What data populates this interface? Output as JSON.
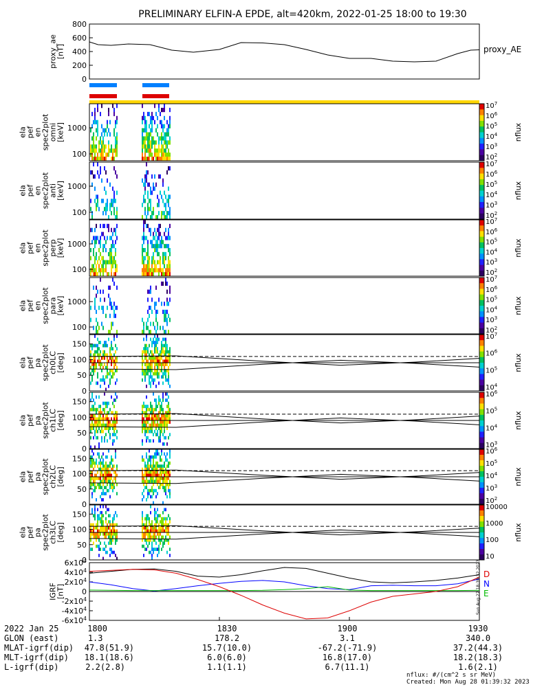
{
  "title": "PRELIMINARY ELFIN-A EPDE, alt=420km, 2022-01-25 18:00 to 19:30",
  "chart_data": [
    {
      "type": "line",
      "ylabel_lines": [
        "proxy_ae",
        "[nT]"
      ],
      "legend": "proxy_AE",
      "ylim": [
        0,
        800
      ],
      "yticks": [
        "0",
        "200",
        "400",
        "600",
        "800"
      ],
      "x_minutes": [
        0,
        2,
        5,
        9,
        14,
        19,
        24,
        30,
        35,
        40,
        45,
        50,
        55,
        60,
        65,
        70,
        75,
        80,
        85,
        88,
        90
      ],
      "values": [
        540,
        500,
        490,
        510,
        500,
        420,
        390,
        430,
        530,
        525,
        500,
        430,
        350,
        300,
        300,
        260,
        250,
        260,
        370,
        420,
        425
      ]
    },
    {
      "type": "heatmap",
      "ylabel_lines": [
        "ela",
        "pef",
        "en",
        "spec2plot",
        "omni",
        "[keV]"
      ],
      "yticks": [
        "100",
        "1000"
      ],
      "colorbar_label": "nflux",
      "colorbar_ticks": [
        "10^2",
        "10^3",
        "10^4",
        "10^5",
        "10^6",
        "10^7"
      ]
    },
    {
      "type": "heatmap",
      "ylabel_lines": [
        "ela",
        "pef",
        "en",
        "spec2plot",
        "anti",
        "[keV]"
      ],
      "yticks": [
        "100",
        "1000"
      ],
      "colorbar_label": "nflux",
      "colorbar_ticks": [
        "10^2",
        "10^3",
        "10^4",
        "10^5",
        "10^6",
        "10^7"
      ]
    },
    {
      "type": "heatmap",
      "ylabel_lines": [
        "ela",
        "pef",
        "en",
        "spec2plot",
        "perp",
        "[keV]"
      ],
      "yticks": [
        "100",
        "1000"
      ],
      "colorbar_label": "nflux",
      "colorbar_ticks": [
        "10^2",
        "10^3",
        "10^4",
        "10^5",
        "10^6",
        "10^7"
      ]
    },
    {
      "type": "heatmap",
      "ylabel_lines": [
        "ela",
        "pef",
        "en",
        "spec2plot",
        "para",
        "[keV]"
      ],
      "yticks": [
        "100",
        "1000"
      ],
      "colorbar_label": "nflux",
      "colorbar_ticks": [
        "10^2",
        "10^3",
        "10^4",
        "10^5",
        "10^6",
        "10^7"
      ]
    },
    {
      "type": "heatmap",
      "ylabel_lines": [
        "ela",
        "pef",
        "pa",
        "spec2plot",
        "ch0LC",
        "[deg]"
      ],
      "yticks": [
        "0",
        "50",
        "100",
        "150"
      ],
      "ylim": [
        0,
        180
      ],
      "colorbar_label": "nflux",
      "colorbar_ticks": [
        "10^4",
        "10^5",
        "10^6",
        "10^7"
      ]
    },
    {
      "type": "heatmap",
      "ylabel_lines": [
        "ela",
        "pef",
        "pa",
        "spec2plot",
        "ch1LC",
        "[deg]"
      ],
      "yticks": [
        "0",
        "50",
        "100",
        "150"
      ],
      "ylim": [
        0,
        180
      ],
      "colorbar_label": "nflux",
      "colorbar_ticks": [
        "10^3",
        "10^4",
        "10^5",
        "10^6"
      ]
    },
    {
      "type": "heatmap",
      "ylabel_lines": [
        "ela",
        "pef",
        "pa",
        "spec2plot",
        "ch2LC",
        "[deg]"
      ],
      "yticks": [
        "0",
        "50",
        "100",
        "150"
      ],
      "ylim": [
        0,
        180
      ],
      "colorbar_label": "nflux",
      "colorbar_ticks": [
        "10^2",
        "10^3",
        "10^4",
        "10^5",
        "10^6"
      ]
    },
    {
      "type": "heatmap",
      "ylabel_lines": [
        "ela",
        "pef",
        "pa",
        "spec2plot",
        "ch3LC",
        "[deg]"
      ],
      "yticks": [
        "0",
        "50",
        "100",
        "150"
      ],
      "ylim": [
        0,
        180
      ],
      "colorbar_label": "nflux",
      "colorbar_ticks": [
        "10",
        "100",
        "1000",
        "10000"
      ]
    },
    {
      "type": "line",
      "ylabel_lines": [
        "IGRF",
        "[nT]"
      ],
      "ylim": [
        -60000,
        60000
      ],
      "yticks": [
        "-6x10^4",
        "-4x10^4",
        "-2x10^4",
        "0",
        "2x10^4",
        "4x10^4",
        "6x10^4"
      ],
      "legend": [
        "D",
        "N",
        "E"
      ],
      "sidebar_text": "Sun Aug 27 18:39:32 2023",
      "x_minutes": [
        0,
        5,
        10,
        15,
        20,
        25,
        30,
        35,
        40,
        45,
        50,
        55,
        60,
        65,
        70,
        75,
        80,
        85,
        90
      ],
      "series": [
        {
          "name": "D",
          "color": "#000000",
          "values": [
            38000,
            42000,
            46000,
            47000,
            42000,
            32000,
            30000,
            35000,
            43000,
            50000,
            48000,
            38000,
            28000,
            20000,
            18000,
            20000,
            23000,
            28000,
            35000
          ]
        },
        {
          "name": "N",
          "color": "#0000ff",
          "values": [
            20000,
            14000,
            6000,
            1000,
            6000,
            12000,
            17000,
            21000,
            23000,
            20000,
            12000,
            6000,
            4000,
            12000,
            13000,
            12000,
            12000,
            16000,
            26000
          ]
        },
        {
          "name": "E",
          "color": "#00bb00",
          "values": [
            3000,
            2500,
            2000,
            2000,
            2000,
            2000,
            2000,
            2000,
            2500,
            4000,
            6000,
            10000,
            3000,
            2000,
            2000,
            2000,
            2000,
            2000,
            2500
          ]
        },
        {
          "name": "red",
          "color": "#dd0000",
          "values": [
            42000,
            44000,
            46000,
            45000,
            38000,
            25000,
            10000,
            -8000,
            -28000,
            -45000,
            -57000,
            -55000,
            -40000,
            -22000,
            -10000,
            -5000,
            0,
            10000,
            30000
          ]
        }
      ]
    }
  ],
  "status_bars": {
    "blue_color": "#0080ff",
    "red_color": "#dd0000",
    "yellow_color": "#ffd700"
  },
  "footer": {
    "rows": [
      {
        "label": "2022 Jan 25",
        "values": [
          "1800",
          "1830",
          "1900",
          "1930"
        ]
      },
      {
        "label": "GLON (east)",
        "values": [
          "1.3",
          "178.2",
          "3.1",
          "340.0"
        ]
      },
      {
        "label": "MLAT-igrf(dip)",
        "values": [
          "47.8(51.9)",
          "15.7(10.0)",
          "-67.2(-71.9)",
          "37.2(44.3)"
        ]
      },
      {
        "label": "MLT-igrf(dip)",
        "values": [
          "18.1(18.6)",
          "6.0(6.0)",
          "16.8(17.0)",
          "18.2(18.3)"
        ]
      },
      {
        "label": "L-igrf(dip)",
        "values": [
          "2.2(2.8)",
          "1.1(1.1)",
          "6.7(11.1)",
          "1.6(2.1)"
        ]
      }
    ],
    "units": "nflux: #/(cm^2 s sr MeV)",
    "created": "Created: Mon Aug 28 01:39:32 2023"
  }
}
